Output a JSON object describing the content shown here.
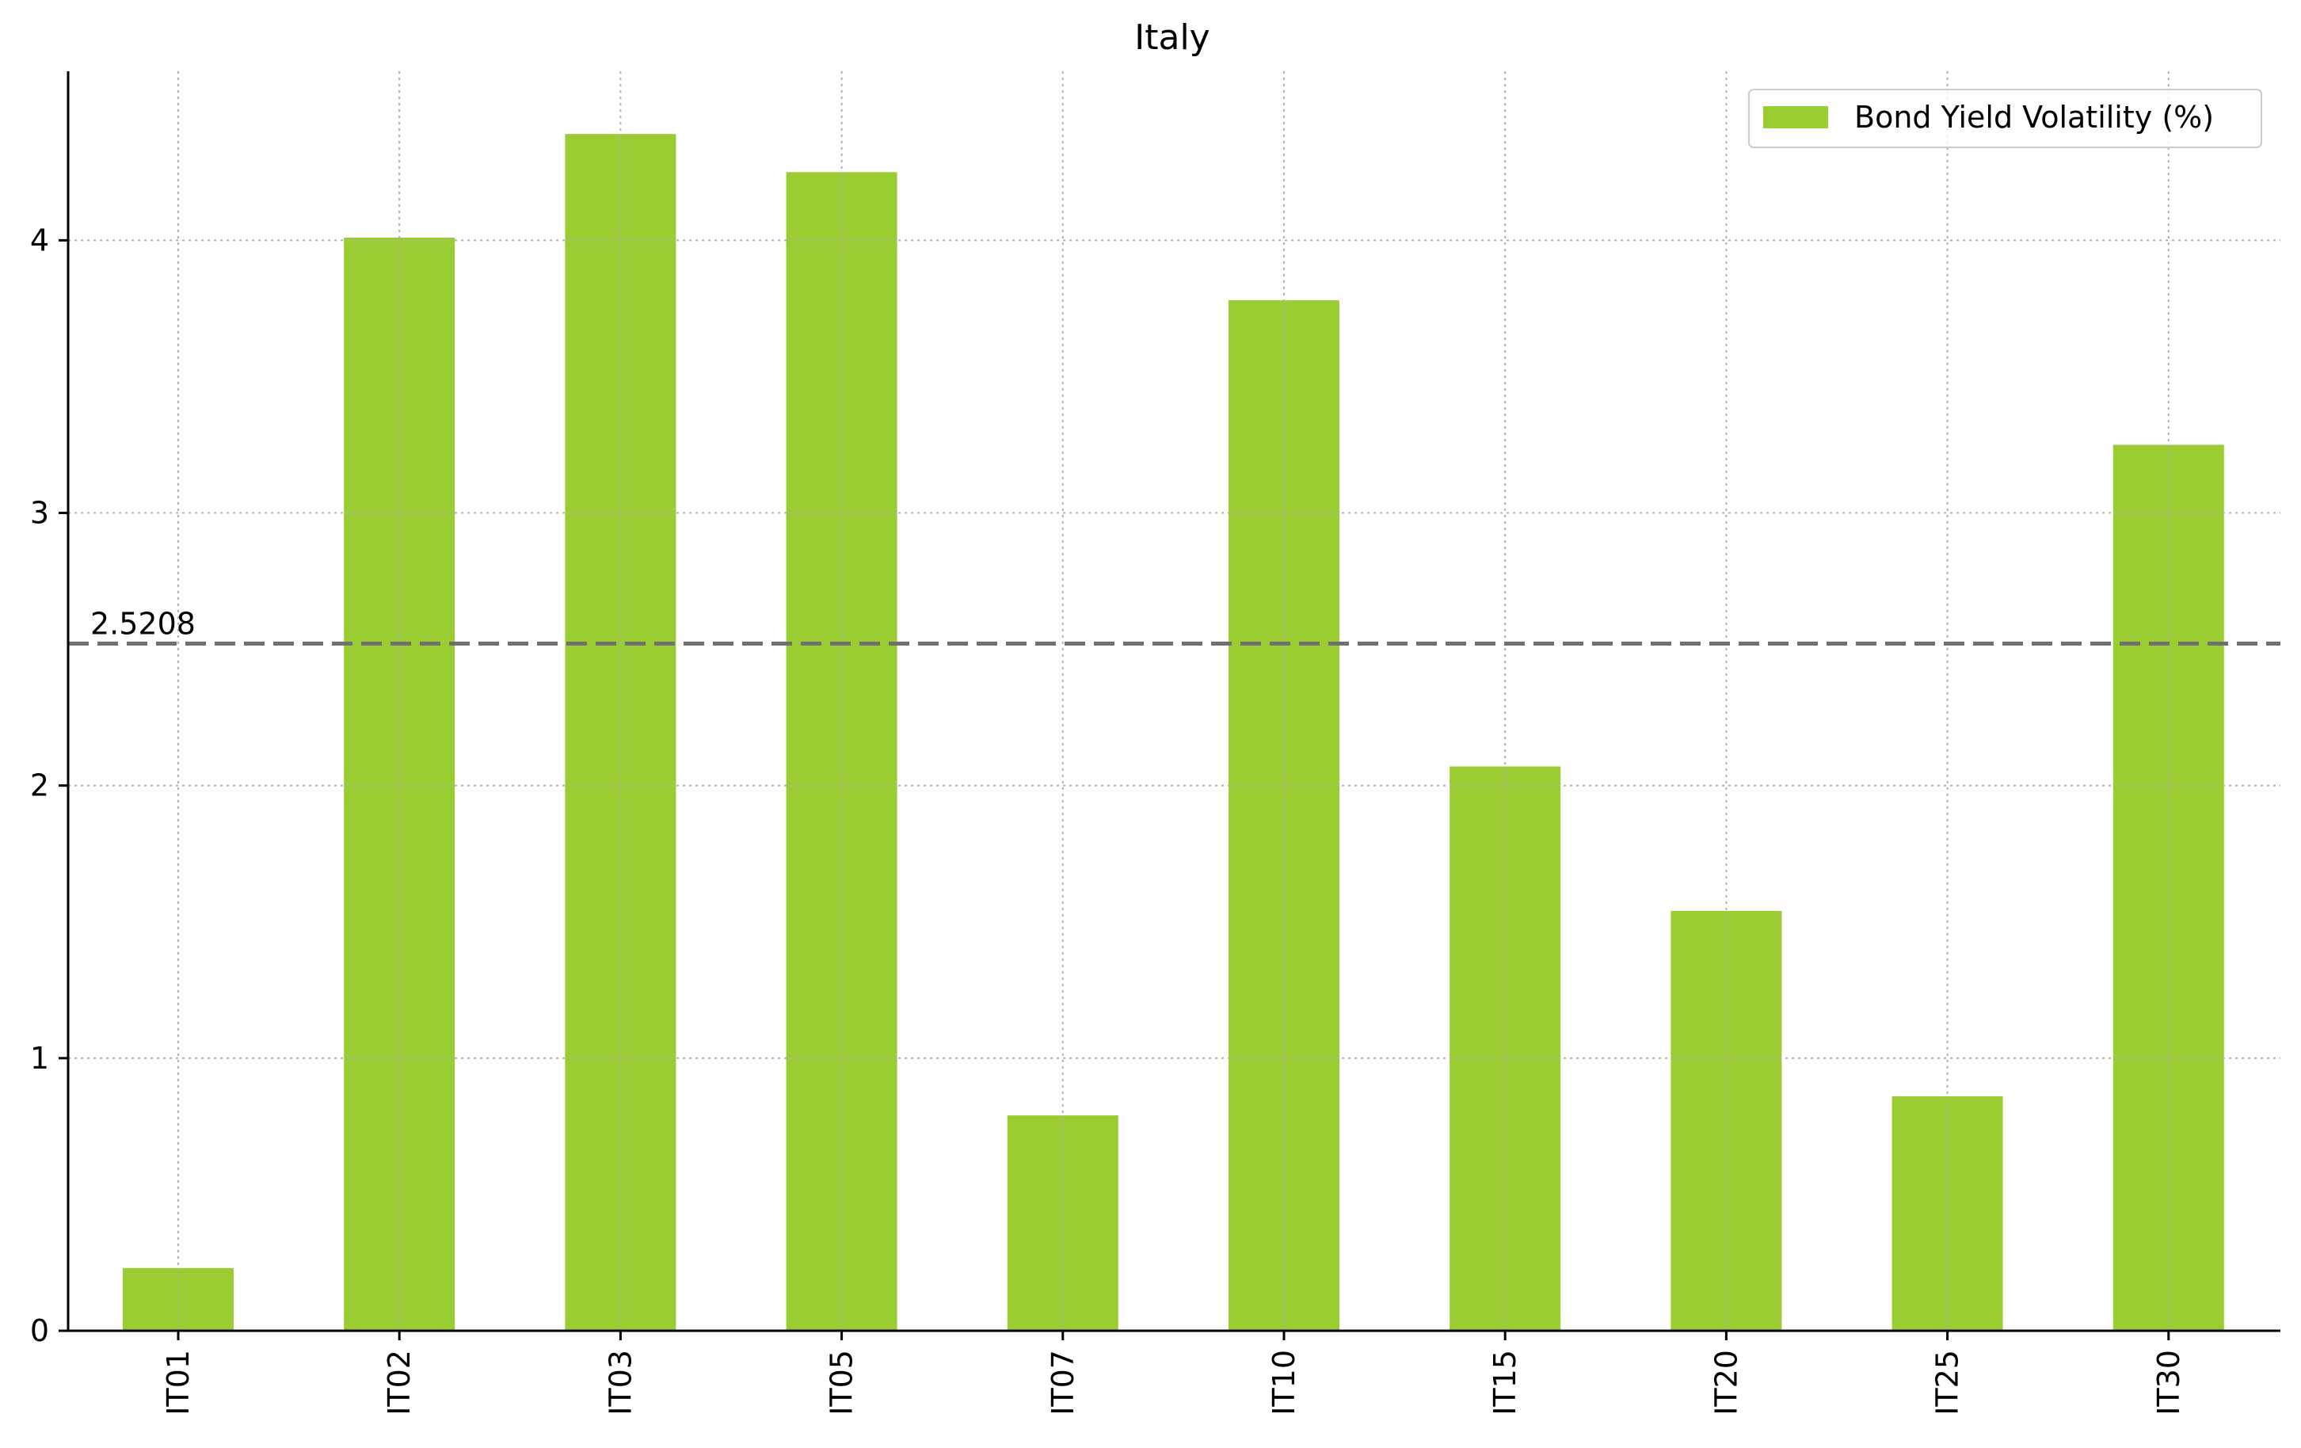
{
  "chart_data": {
    "type": "bar",
    "title": "Italy",
    "xlabel": "",
    "ylabel": "",
    "categories": [
      "IT01",
      "IT02",
      "IT03",
      "IT05",
      "IT07",
      "IT10",
      "IT15",
      "IT20",
      "IT25",
      "IT30"
    ],
    "series": [
      {
        "name": "Bond Yield Volatility (%)",
        "values": [
          0.23,
          4.01,
          4.39,
          4.25,
          0.79,
          3.78,
          2.07,
          1.54,
          0.86,
          3.25
        ],
        "color": "#9acd32"
      }
    ],
    "ylim": [
      0,
      4.62
    ],
    "yticks": [
      0,
      1,
      2,
      3,
      4
    ],
    "reference_line": {
      "value": 2.5208,
      "label": "2.5208",
      "color": "#707070",
      "style": "dashed"
    },
    "grid": true,
    "legend_position": "upper right"
  }
}
